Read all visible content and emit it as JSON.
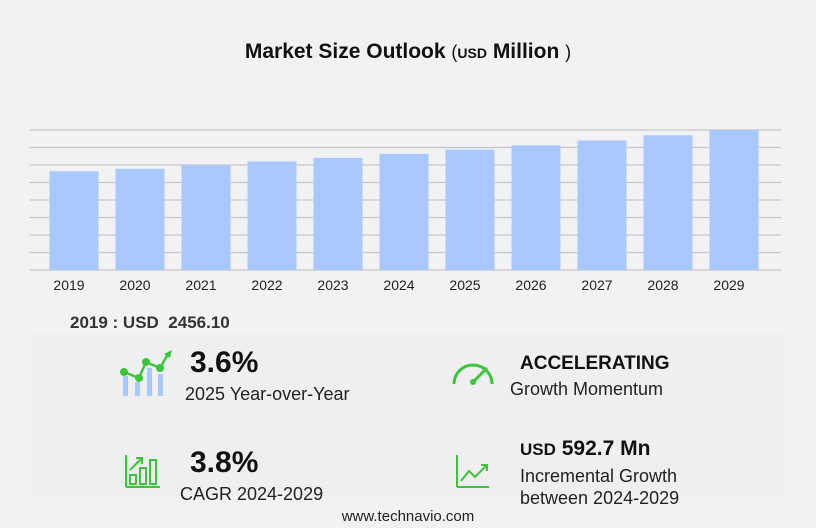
{
  "title": {
    "main": "Market Size Outlook",
    "open": "(",
    "unit": "USD",
    "unit2": "Million",
    "close": ")"
  },
  "chart_data": {
    "type": "bar",
    "categories": [
      "2019",
      "2020",
      "2021",
      "2022",
      "2023",
      "2024",
      "2025",
      "2026",
      "2027",
      "2028",
      "2029"
    ],
    "values": [
      2456.1,
      2520,
      2610,
      2700,
      2790,
      2890,
      2994,
      3100,
      3220,
      3350,
      3483
    ],
    "ylim": [
      0,
      3483
    ],
    "grid": true,
    "color": "#a8c8ff",
    "xlabel": "",
    "ylabel": ""
  },
  "first_year": {
    "label": "2019 : USD",
    "value": "2456.10"
  },
  "stats": {
    "yoy": {
      "value": "3.6%",
      "label": "2025 Year-over-Year"
    },
    "momentum": {
      "value": "ACCELERATING",
      "label": "Growth Momentum"
    },
    "cagr": {
      "value": "3.8%",
      "label": "CAGR 2024-2029"
    },
    "incremental": {
      "unit": "USD",
      "value": "592.7 Mn",
      "label1": "Incremental Growth",
      "label2": "between 2024-2029"
    }
  },
  "footer": "www.technavio.com",
  "accent": "#3cc43c"
}
